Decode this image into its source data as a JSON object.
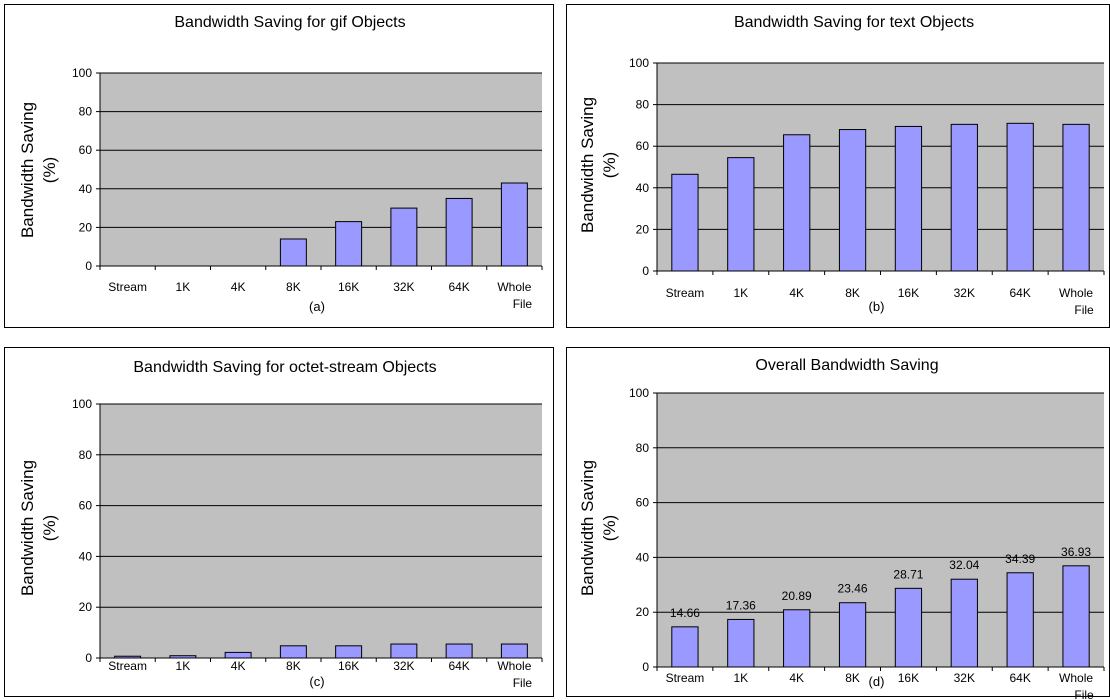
{
  "chart_data": [
    {
      "id": "a",
      "type": "bar",
      "title": "Bandwidth Saving for gif Objects",
      "ylabel": [
        "Bandwidth Saving",
        "(%)"
      ],
      "caption": "(a)",
      "ylim": [
        0,
        100
      ],
      "yticks": [
        0,
        20,
        40,
        60,
        80,
        100
      ],
      "grid": true,
      "legend": "none",
      "categories": [
        [
          "Stream"
        ],
        [
          "1K"
        ],
        [
          "4K"
        ],
        [
          "8K"
        ],
        [
          "16K"
        ],
        [
          "32K"
        ],
        [
          "64K"
        ],
        [
          "Whole",
          "File"
        ]
      ],
      "values": [
        0,
        0,
        0,
        14,
        23,
        30,
        35,
        43
      ],
      "data_labels": []
    },
    {
      "id": "b",
      "type": "bar",
      "title": "Bandwidth Saving for text Objects",
      "ylabel": [
        "Bandwidth Saving",
        "(%)"
      ],
      "caption": "(b)",
      "ylim": [
        0,
        100
      ],
      "yticks": [
        0,
        20,
        40,
        60,
        80,
        100
      ],
      "grid": true,
      "legend": "none",
      "categories": [
        [
          "Stream"
        ],
        [
          "1K"
        ],
        [
          "4K"
        ],
        [
          "8K"
        ],
        [
          "16K"
        ],
        [
          "32K"
        ],
        [
          "64K"
        ],
        [
          "Whole",
          "File"
        ]
      ],
      "values": [
        46.5,
        54.5,
        65.5,
        68,
        69.5,
        70.5,
        71,
        70.5
      ],
      "data_labels": []
    },
    {
      "id": "c",
      "type": "bar",
      "title": "Bandwidth Saving for octet-stream Objects",
      "ylabel": [
        "Bandwidth Saving",
        "(%)"
      ],
      "caption": "(c)",
      "ylim": [
        0,
        100
      ],
      "yticks": [
        0,
        20,
        40,
        60,
        80,
        100
      ],
      "grid": true,
      "legend": "none",
      "categories": [
        [
          "Stream"
        ],
        [
          "1K"
        ],
        [
          "4K"
        ],
        [
          "8K"
        ],
        [
          "16K"
        ],
        [
          "32K"
        ],
        [
          "64K"
        ],
        [
          "Whole",
          "File"
        ]
      ],
      "values": [
        0.7,
        0.9,
        2.2,
        4.8,
        4.8,
        5.5,
        5.5,
        5.5
      ],
      "data_labels": []
    },
    {
      "id": "d",
      "type": "bar",
      "title": "Overall Bandwidth Saving",
      "ylabel": [
        "Bandwidth Saving",
        "(%)"
      ],
      "caption": "(d)",
      "ylim": [
        0,
        100
      ],
      "yticks": [
        0,
        20,
        40,
        60,
        80,
        100
      ],
      "grid": true,
      "legend": "none",
      "categories": [
        [
          "Stream"
        ],
        [
          "1K"
        ],
        [
          "4K"
        ],
        [
          "8K"
        ],
        [
          "16K"
        ],
        [
          "32K"
        ],
        [
          "64K"
        ],
        [
          "Whole",
          "File"
        ]
      ],
      "values": [
        14.66,
        17.36,
        20.89,
        23.46,
        28.71,
        32.04,
        34.39,
        36.93
      ],
      "data_labels": [
        "14.66",
        "17.36",
        "20.89",
        "23.46",
        "28.71",
        "32.04",
        "34.39",
        "36.93"
      ]
    }
  ],
  "colors": {
    "bar_fill": "#9999ff",
    "bar_stroke": "#000000",
    "plot_bg": "#c0c0c0",
    "grid": "#000000"
  }
}
